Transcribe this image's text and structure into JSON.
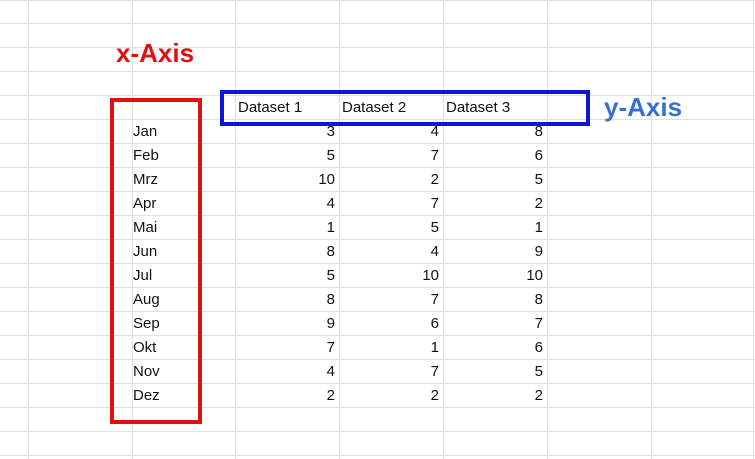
{
  "labels": {
    "x_axis": "x-Axis",
    "y_axis": "y-Axis"
  },
  "colors": {
    "x_axis": "#e01010",
    "y_axis_box": "#0a16d8",
    "y_axis_text": "#3a6fd0",
    "grid": "#e1e1e1"
  },
  "headers": [
    "Dataset 1",
    "Dataset 2",
    "Dataset 3"
  ],
  "rows": [
    {
      "month": "Jan",
      "values": [
        3,
        4,
        8
      ]
    },
    {
      "month": "Feb",
      "values": [
        5,
        7,
        6
      ]
    },
    {
      "month": "Mrz",
      "values": [
        10,
        2,
        5
      ]
    },
    {
      "month": "Apr",
      "values": [
        4,
        7,
        2
      ]
    },
    {
      "month": "Mai",
      "values": [
        1,
        5,
        1
      ]
    },
    {
      "month": "Jun",
      "values": [
        8,
        4,
        9
      ]
    },
    {
      "month": "Jul",
      "values": [
        5,
        10,
        10
      ]
    },
    {
      "month": "Aug",
      "values": [
        8,
        7,
        8
      ]
    },
    {
      "month": "Sep",
      "values": [
        9,
        6,
        7
      ]
    },
    {
      "month": "Okt",
      "values": [
        7,
        1,
        6
      ]
    },
    {
      "month": "Nov",
      "values": [
        4,
        7,
        5
      ]
    },
    {
      "month": "Dez",
      "values": [
        2,
        2,
        2
      ]
    }
  ]
}
